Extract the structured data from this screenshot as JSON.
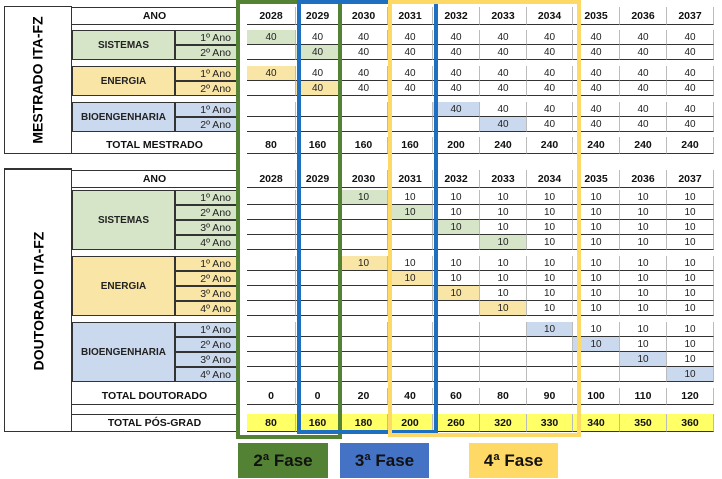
{
  "colors": {
    "green": "#d6e4c8",
    "yellow": "#f9e6a6",
    "blue": "#cbd9ee",
    "total": "#ffff66",
    "phase2": "#548235",
    "phase3": "#1f6fc0",
    "phase4": "#ffd966",
    "legend3": "#4472c4"
  },
  "years": [
    "2028",
    "2029",
    "2030",
    "2031",
    "2032",
    "2033",
    "2034",
    "2035",
    "2036",
    "2037"
  ],
  "mestrado": {
    "title": "MESTRADO ITA-FZ",
    "ano_label": "ANO",
    "groups": [
      {
        "name": "SISTEMAS",
        "color": "green",
        "rows": [
          {
            "label": "1º Ano",
            "values": [
              "40",
              "40",
              "40",
              "40",
              "40",
              "40",
              "40",
              "40",
              "40",
              "40"
            ],
            "highlight": 0
          },
          {
            "label": "2º Ano",
            "values": [
              "",
              "40",
              "40",
              "40",
              "40",
              "40",
              "40",
              "40",
              "40",
              "40"
            ],
            "highlight": 1
          }
        ]
      },
      {
        "name": "ENERGIA",
        "color": "yellow",
        "rows": [
          {
            "label": "1º Ano",
            "values": [
              "40",
              "40",
              "40",
              "40",
              "40",
              "40",
              "40",
              "40",
              "40",
              "40"
            ],
            "highlight": 0
          },
          {
            "label": "2º Ano",
            "values": [
              "",
              "40",
              "40",
              "40",
              "40",
              "40",
              "40",
              "40",
              "40",
              "40"
            ],
            "highlight": 1
          }
        ]
      },
      {
        "name": "BIOENGENHARIA",
        "color": "blue",
        "rows": [
          {
            "label": "1º Ano",
            "values": [
              "",
              "",
              "",
              "",
              "40",
              "40",
              "40",
              "40",
              "40",
              "40"
            ],
            "highlight": 4
          },
          {
            "label": "2º Ano",
            "values": [
              "",
              "",
              "",
              "",
              "",
              "40",
              "40",
              "40",
              "40",
              "40"
            ],
            "highlight": 5
          }
        ]
      }
    ],
    "total_label": "TOTAL MESTRADO",
    "totals": [
      "80",
      "160",
      "160",
      "160",
      "200",
      "240",
      "240",
      "240",
      "240",
      "240"
    ]
  },
  "doutorado": {
    "title": "DOUTORADO ITA-FZ",
    "ano_label": "ANO",
    "groups": [
      {
        "name": "SISTEMAS",
        "color": "green",
        "rows": [
          {
            "label": "1º Ano",
            "values": [
              "",
              "",
              "10",
              "10",
              "10",
              "10",
              "10",
              "10",
              "10",
              "10"
            ],
            "highlight": 2
          },
          {
            "label": "2º Ano",
            "values": [
              "",
              "",
              "",
              "10",
              "10",
              "10",
              "10",
              "10",
              "10",
              "10"
            ],
            "highlight": 3
          },
          {
            "label": "3º Ano",
            "values": [
              "",
              "",
              "",
              "",
              "10",
              "10",
              "10",
              "10",
              "10",
              "10"
            ],
            "highlight": 4
          },
          {
            "label": "4º Ano",
            "values": [
              "",
              "",
              "",
              "",
              "",
              "10",
              "10",
              "10",
              "10",
              "10"
            ],
            "highlight": 5
          }
        ]
      },
      {
        "name": "ENERGIA",
        "color": "yellow",
        "rows": [
          {
            "label": "1º Ano",
            "values": [
              "",
              "",
              "10",
              "10",
              "10",
              "10",
              "10",
              "10",
              "10",
              "10"
            ],
            "highlight": 2
          },
          {
            "label": "2º Ano",
            "values": [
              "",
              "",
              "",
              "10",
              "10",
              "10",
              "10",
              "10",
              "10",
              "10"
            ],
            "highlight": 3
          },
          {
            "label": "3º Ano",
            "values": [
              "",
              "",
              "",
              "",
              "10",
              "10",
              "10",
              "10",
              "10",
              "10"
            ],
            "highlight": 4
          },
          {
            "label": "4º Ano",
            "values": [
              "",
              "",
              "",
              "",
              "",
              "10",
              "10",
              "10",
              "10",
              "10"
            ],
            "highlight": 5
          }
        ]
      },
      {
        "name": "BIOENGENHARIA",
        "color": "blue",
        "rows": [
          {
            "label": "1º Ano",
            "values": [
              "",
              "",
              "",
              "",
              "",
              "",
              "10",
              "10",
              "10",
              "10"
            ],
            "highlight": 6
          },
          {
            "label": "2º Ano",
            "values": [
              "",
              "",
              "",
              "",
              "",
              "",
              "",
              "10",
              "10",
              "10"
            ],
            "highlight": 7
          },
          {
            "label": "3º Ano",
            "values": [
              "",
              "",
              "",
              "",
              "",
              "",
              "",
              "",
              "10",
              "10"
            ],
            "highlight": 8
          },
          {
            "label": "4º Ano",
            "values": [
              "",
              "",
              "",
              "",
              "",
              "",
              "",
              "",
              "",
              "10"
            ],
            "highlight": 9
          }
        ]
      }
    ],
    "total_label": "TOTAL DOUTORADO",
    "totals": [
      "0",
      "0",
      "20",
      "40",
      "60",
      "80",
      "90",
      "100",
      "110",
      "120"
    ]
  },
  "grand_total": {
    "label": "TOTAL PÓS-GRAD",
    "values": [
      "80",
      "160",
      "180",
      "200",
      "260",
      "320",
      "330",
      "340",
      "350",
      "360"
    ]
  },
  "legend": [
    {
      "label": "2ª Fase"
    },
    {
      "label": "3ª Fase"
    },
    {
      "label": "4ª Fase"
    }
  ]
}
